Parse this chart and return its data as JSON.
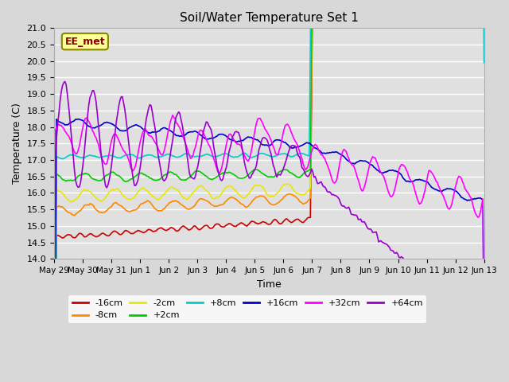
{
  "title": "Soil/Water Temperature Set 1",
  "xlabel": "Time",
  "ylabel": "Temperature (C)",
  "ylim": [
    14.0,
    21.0
  ],
  "yticks": [
    14.0,
    14.5,
    15.0,
    15.5,
    16.0,
    16.5,
    17.0,
    17.5,
    18.0,
    18.5,
    19.0,
    19.5,
    20.0,
    20.5,
    21.0
  ],
  "xtick_labels": [
    "May 29",
    "May 30",
    "May 31",
    "Jun 1",
    "Jun 2",
    "Jun 3",
    "Jun 4",
    "Jun 5",
    "Jun 6",
    "Jun 7",
    "Jun 8",
    "Jun 9",
    "Jun 10",
    "Jun 11",
    "Jun 12",
    "Jun 13"
  ],
  "background_color": "#d8d8d8",
  "plot_bg_color": "#e0e0e0",
  "legend_bg": "#ffffff",
  "series": [
    {
      "label": "-16cm",
      "color": "#cc0000"
    },
    {
      "label": "-8cm",
      "color": "#ff8800"
    },
    {
      "label": "-2cm",
      "color": "#e8e800"
    },
    {
      "label": "+2cm",
      "color": "#00cc00"
    },
    {
      "label": "+8cm",
      "color": "#00cccc"
    },
    {
      "label": "+16cm",
      "color": "#0000cc"
    },
    {
      "label": "+32cm",
      "color": "#ff00ff"
    },
    {
      "label": "+64cm",
      "color": "#9900cc"
    }
  ],
  "annotation_text": "EE_met",
  "grid_color": "#ffffff",
  "n_days": 15,
  "n_pts": 360
}
